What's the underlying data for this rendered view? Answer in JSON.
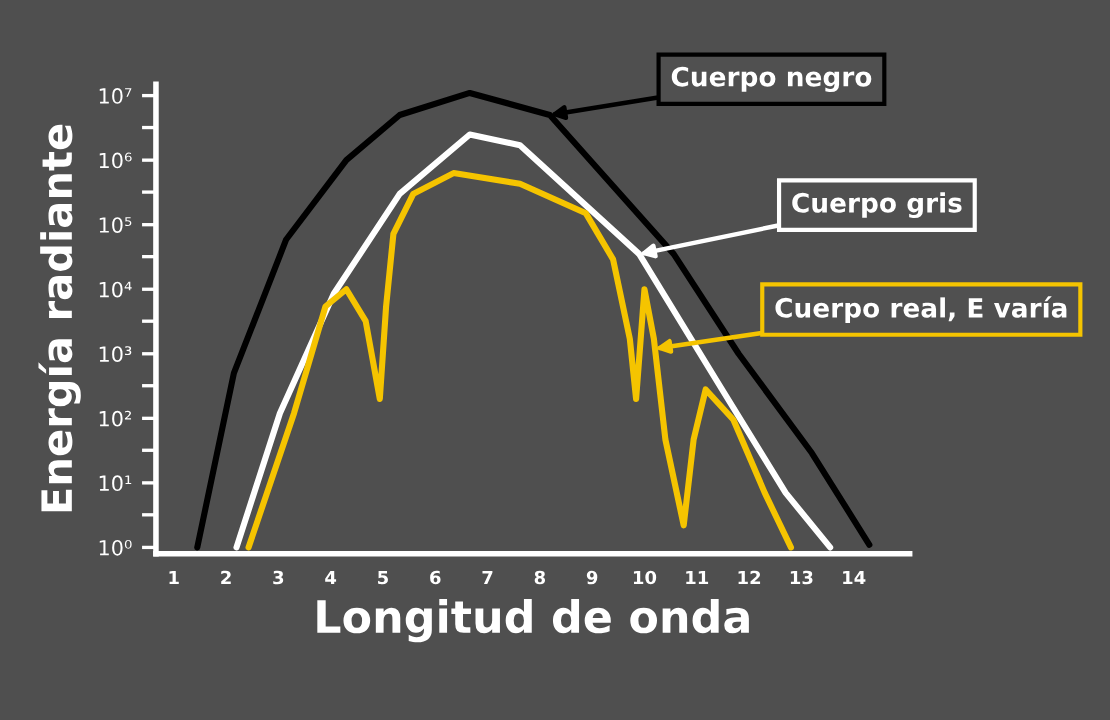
{
  "chart_data": {
    "type": "line",
    "xlabel": "Longitud de onda",
    "ylabel": "Energía radiante",
    "log": "y",
    "grid": false,
    "legend": false,
    "marker": "none",
    "line_style": "solid",
    "xlim": [
      0.66,
      15.07
    ],
    "xticks": [
      1,
      2,
      3,
      4,
      5,
      6,
      7,
      8,
      9,
      10,
      11,
      12,
      13,
      14
    ],
    "ylim": [
      0.8,
      15000000
    ],
    "yticks": [
      {
        "value": 1,
        "label": "10⁰"
      },
      {
        "value": 3.2,
        "label": null
      },
      {
        "value": 10,
        "label": "10¹"
      },
      {
        "value": 32,
        "label": null
      },
      {
        "value": 100,
        "label": "10²"
      },
      {
        "value": 320,
        "label": null
      },
      {
        "value": 1000,
        "label": "10³"
      },
      {
        "value": 3200,
        "label": null
      },
      {
        "value": 10000,
        "label": "10⁴"
      },
      {
        "value": 32000,
        "label": null
      },
      {
        "value": 100000,
        "label": "10⁵"
      },
      {
        "value": 320000,
        "label": null
      },
      {
        "value": 1000000,
        "label": "10⁶"
      },
      {
        "value": 3200000,
        "label": null
      },
      {
        "value": 10000000,
        "label": "10⁷"
      }
    ],
    "series": [
      {
        "color": "#000000",
        "x": [
          1.45,
          2.15,
          3.15,
          4.3,
          5.32,
          6.66,
          8.19,
          10.56,
          11.8,
          13.2,
          14.3
        ],
        "values": [
          1,
          500,
          59000,
          1000000,
          5000000,
          11000000,
          5000000,
          35000,
          1000,
          29,
          1.1
        ]
      },
      {
        "color": "#ffffff",
        "x": [
          2.2,
          3.03,
          4.06,
          5.32,
          6.66,
          7.62,
          9.9,
          11.44,
          12.7,
          13.55
        ],
        "values": [
          1,
          120,
          8500,
          300000,
          2500000,
          1700000,
          35000,
          320,
          7,
          1
        ]
      },
      {
        "color": "#f5c400",
        "x": [
          2.43,
          3.3,
          3.9,
          4.3,
          4.67,
          4.94,
          5.06,
          5.2,
          5.58,
          6.35,
          7.62,
          8.88,
          9.4,
          9.72,
          9.84,
          10.0,
          10.18,
          10.4,
          10.75,
          10.94,
          11.17,
          11.7,
          12.3,
          12.8
        ],
        "values": [
          1,
          120,
          5400,
          10000,
          3200,
          200,
          5400,
          72000,
          300000,
          630000,
          430000,
          150000,
          29000,
          1700,
          200,
          10000,
          1700,
          47,
          2.2,
          47,
          280,
          95,
          7,
          1
        ]
      }
    ],
    "annotations": [
      {
        "text": "Cuerpo negro",
        "x": 8.19,
        "y": 5000000
      },
      {
        "text": "Cuerpo gris",
        "x": 9.9,
        "y": 35000
      },
      {
        "text": "Cuerpo real, E varía",
        "x": 10.2,
        "y": 1200
      }
    ]
  }
}
